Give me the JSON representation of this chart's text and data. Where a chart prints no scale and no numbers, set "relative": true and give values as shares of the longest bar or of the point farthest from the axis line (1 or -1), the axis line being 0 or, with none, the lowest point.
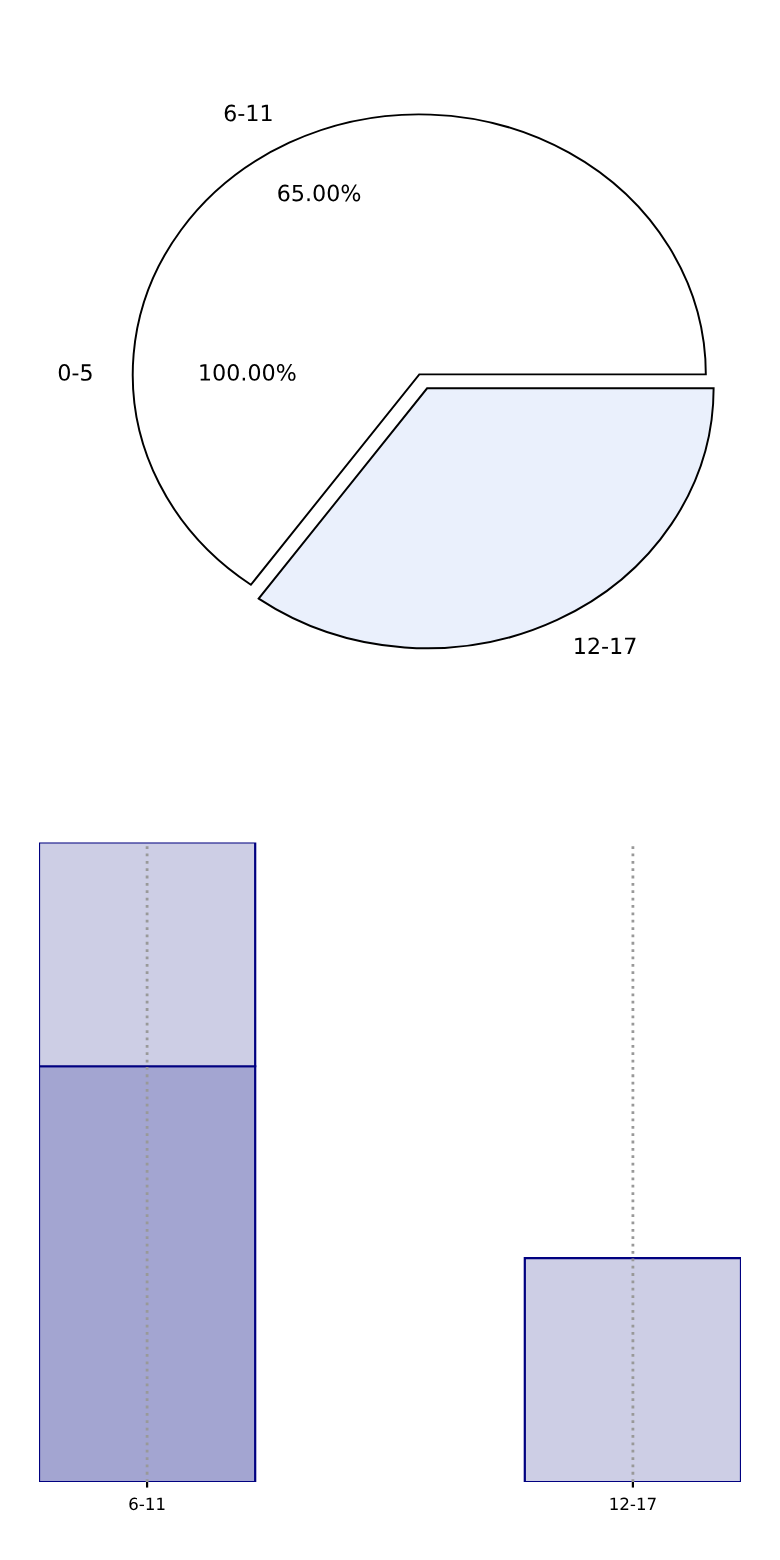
{
  "chart_data": [
    {
      "type": "pie",
      "categories": [
        "6-11",
        "12-17"
      ],
      "values": [
        65,
        35
      ],
      "colors": [
        "#ffffff",
        "#eaf0fc"
      ],
      "value_labels": [
        "65.00%",
        null
      ],
      "annotations": [
        "0-5",
        "100.00%"
      ]
    },
    {
      "type": "bar",
      "relative": true,
      "stacked": true,
      "categories": [
        "6-11",
        "12-17"
      ],
      "grid": "x",
      "tick_labels": "x",
      "series": [
        {
          "color": "#a3a5d1",
          "values": [
            0.65,
            null
          ]
        },
        {
          "color": "#cdcee5",
          "values": [
            0.35,
            0.35
          ]
        }
      ]
    }
  ]
}
